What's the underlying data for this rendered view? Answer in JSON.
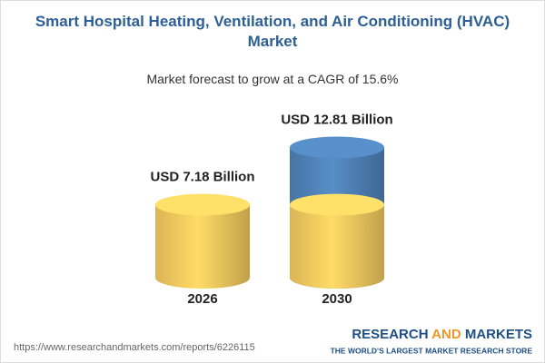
{
  "chart_data": {
    "type": "cylinder",
    "title": "Smart Hospital Heating, Ventilation, and Air Conditioning (HVAC) Market",
    "subtitle": "Market forecast to grow at a CAGR of 15.6%",
    "categories": [
      "2026",
      "2030"
    ],
    "values": [
      7.18,
      12.81
    ],
    "value_labels": [
      "USD 7.18 Billion",
      "USD 12.81 Billion"
    ],
    "colors": [
      "#f3c85e",
      "#4f81b6"
    ]
  },
  "footer": {
    "url": "https://www.researchandmarkets.com/reports/6226115",
    "brand_words": [
      "RESEARCH",
      "AND",
      "MARKETS"
    ],
    "tagline": "THE WORLD'S LARGEST MARKET RESEARCH STORE"
  }
}
